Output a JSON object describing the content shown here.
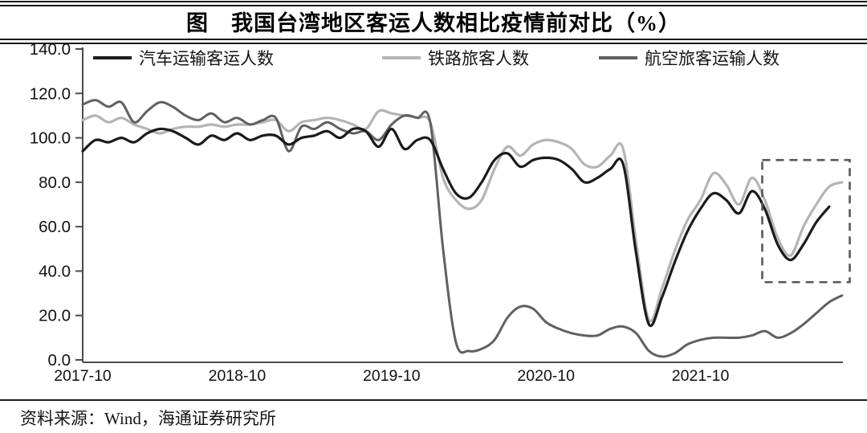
{
  "title": "图　我国台湾地区客运人数相比疫情前对比（%）",
  "source": "资料来源：Wind，海通证券研究所",
  "chart_data": {
    "type": "line",
    "title": "我国台湾地区客运人数相比疫情前对比（%）",
    "xlabel": "",
    "ylabel": "",
    "ylim": [
      0,
      140
    ],
    "grid": false,
    "legend_position": "top",
    "axis_color": "#4a4b4d",
    "label_color": "#111111",
    "x": [
      "2017-10",
      "2017-11",
      "2017-12",
      "2018-01",
      "2018-02",
      "2018-03",
      "2018-04",
      "2018-05",
      "2018-06",
      "2018-07",
      "2018-08",
      "2018-09",
      "2018-10",
      "2018-11",
      "2018-12",
      "2019-01",
      "2019-02",
      "2019-03",
      "2019-04",
      "2019-05",
      "2019-06",
      "2019-07",
      "2019-08",
      "2019-09",
      "2019-10",
      "2019-11",
      "2019-12",
      "2020-01",
      "2020-02",
      "2020-03",
      "2020-04",
      "2020-05",
      "2020-06",
      "2020-07",
      "2020-08",
      "2020-09",
      "2020-10",
      "2020-11",
      "2020-12",
      "2021-01",
      "2021-02",
      "2021-03",
      "2021-04",
      "2021-05",
      "2021-06",
      "2021-07",
      "2021-08",
      "2021-09",
      "2021-10",
      "2021-11",
      "2021-12",
      "2022-01",
      "2022-02",
      "2022-03",
      "2022-04",
      "2022-05",
      "2022-06",
      "2022-07",
      "2022-08",
      "2022-09"
    ],
    "x_tick_labels": [
      "2017-10",
      "2018-10",
      "2019-10",
      "2020-10",
      "2021-10"
    ],
    "y_ticks": {
      "values": [
        140,
        120,
        100,
        80,
        60,
        40,
        20,
        0
      ],
      "labels": [
        "140.0",
        "120.0",
        "100.0",
        "80.0",
        "60.0",
        "40.0",
        "20.0",
        "0.0"
      ]
    },
    "series": [
      {
        "name": "汽车运输客运人数",
        "color": "#1b1b1d",
        "width": 3.2,
        "values": [
          94,
          99,
          98,
          100,
          98,
          102,
          104,
          103,
          100,
          97,
          101,
          99,
          102,
          99,
          101,
          101,
          97,
          100,
          101,
          103,
          100,
          104,
          103,
          96,
          104,
          95,
          99,
          99,
          86,
          75,
          73,
          80,
          90,
          93,
          87,
          90,
          91,
          90,
          86,
          80,
          82,
          86,
          88,
          48,
          16,
          28,
          44,
          58,
          68,
          75,
          72,
          66,
          76,
          68,
          52,
          45,
          52,
          62,
          69,
          null
        ]
      },
      {
        "name": "铁路旅客人数",
        "color": "#b4b4b6",
        "width": 3.2,
        "values": [
          108,
          110,
          107,
          109,
          106,
          104,
          102,
          104,
          105,
          105,
          106,
          105,
          106,
          106,
          107,
          108,
          103,
          107,
          108,
          109,
          108,
          106,
          104,
          112,
          111,
          110,
          109,
          107,
          82,
          72,
          68,
          72,
          86,
          96,
          92,
          97,
          99,
          98,
          95,
          88,
          87,
          92,
          95,
          53,
          18,
          32,
          49,
          63,
          72,
          84,
          79,
          70,
          82,
          72,
          55,
          47,
          60,
          70,
          78,
          80
        ]
      },
      {
        "name": "航空旅客运输人数",
        "color": "#5f6062",
        "width": 3.0,
        "values": [
          115,
          117,
          114,
          116,
          107,
          112,
          116,
          114,
          110,
          108,
          111,
          107,
          109,
          106,
          108,
          109,
          94,
          105,
          104,
          107,
          104,
          102,
          103,
          99,
          106,
          110,
          109,
          107,
          50,
          8,
          4,
          5,
          9,
          19,
          24,
          23,
          17,
          14,
          12,
          11,
          11,
          14,
          15,
          12,
          4,
          1.5,
          3,
          7,
          9,
          10,
          10,
          10,
          11,
          13,
          10,
          12,
          16,
          21,
          26,
          29
        ]
      }
    ],
    "highlight_box": {
      "x_start": "2022-02",
      "x_end": "2022-09",
      "x0_index": 52.8,
      "x1_index": 59.6,
      "y_min": 35,
      "y_max": 90,
      "style": "dashed",
      "color": "#57585a"
    }
  }
}
